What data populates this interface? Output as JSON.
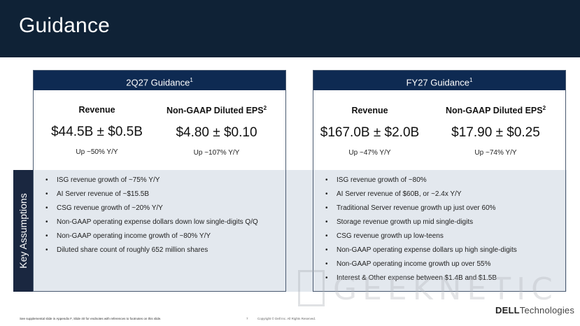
{
  "slide": {
    "title": "Guidance",
    "key_assumptions_label": "Key Assumptions"
  },
  "q2": {
    "heading": "2Q27 Guidance",
    "heading_sup": "1",
    "revenue_label": "Revenue",
    "revenue_value": "$44.5B ± $0.5B",
    "revenue_growth": "Up ~50% Y/Y",
    "eps_label": "Non-GAAP Diluted EPS",
    "eps_sup": "2",
    "eps_value": "$4.80 ± $0.10",
    "eps_growth": "Up ~107% Y/Y",
    "assumptions": [
      "ISG revenue growth of ~75% Y/Y",
      "AI Server revenue of ~$15.5B",
      "CSG revenue growth of ~20% Y/Y",
      "Non-GAAP operating expense dollars down low single-digits Q/Q",
      "Non-GAAP operating income growth of ~80% Y/Y",
      "Diluted share count of roughly 652 million shares"
    ]
  },
  "fy27": {
    "heading": "FY27 Guidance",
    "heading_sup": "1",
    "revenue_label": "Revenue",
    "revenue_value": "$167.0B ± $2.0B",
    "revenue_growth": "Up ~47% Y/Y",
    "eps_label": "Non-GAAP Diluted EPS",
    "eps_sup": "2",
    "eps_value": "$17.90 ± $0.25",
    "eps_growth": "Up ~74% Y/Y",
    "assumptions": [
      "ISG revenue growth of ~80%",
      "AI Server revenue of $60B, or ~2.4x Y/Y",
      "Traditional Server revenue growth up just over 60%",
      "Storage revenue growth up mid single-digits",
      "CSG revenue growth up low-teens",
      "Non-GAAP operating expense dollars up high single-digits",
      "Non-GAAP operating income growth up over 55%",
      "Interest & Other expense between $1.4B and $1.5B"
    ]
  },
  "footer": {
    "note": "See supplemental slide in Appendix F, Slide 40 for endnotes with references to footnotes on this slide.",
    "page_number": "7",
    "copyright": "Copyright © Dell Inc. All Rights Reserved.",
    "logo_brand": "DELL",
    "logo_suffix": "Technologies"
  },
  "watermark": {
    "text": "GEEKNETIC"
  }
}
